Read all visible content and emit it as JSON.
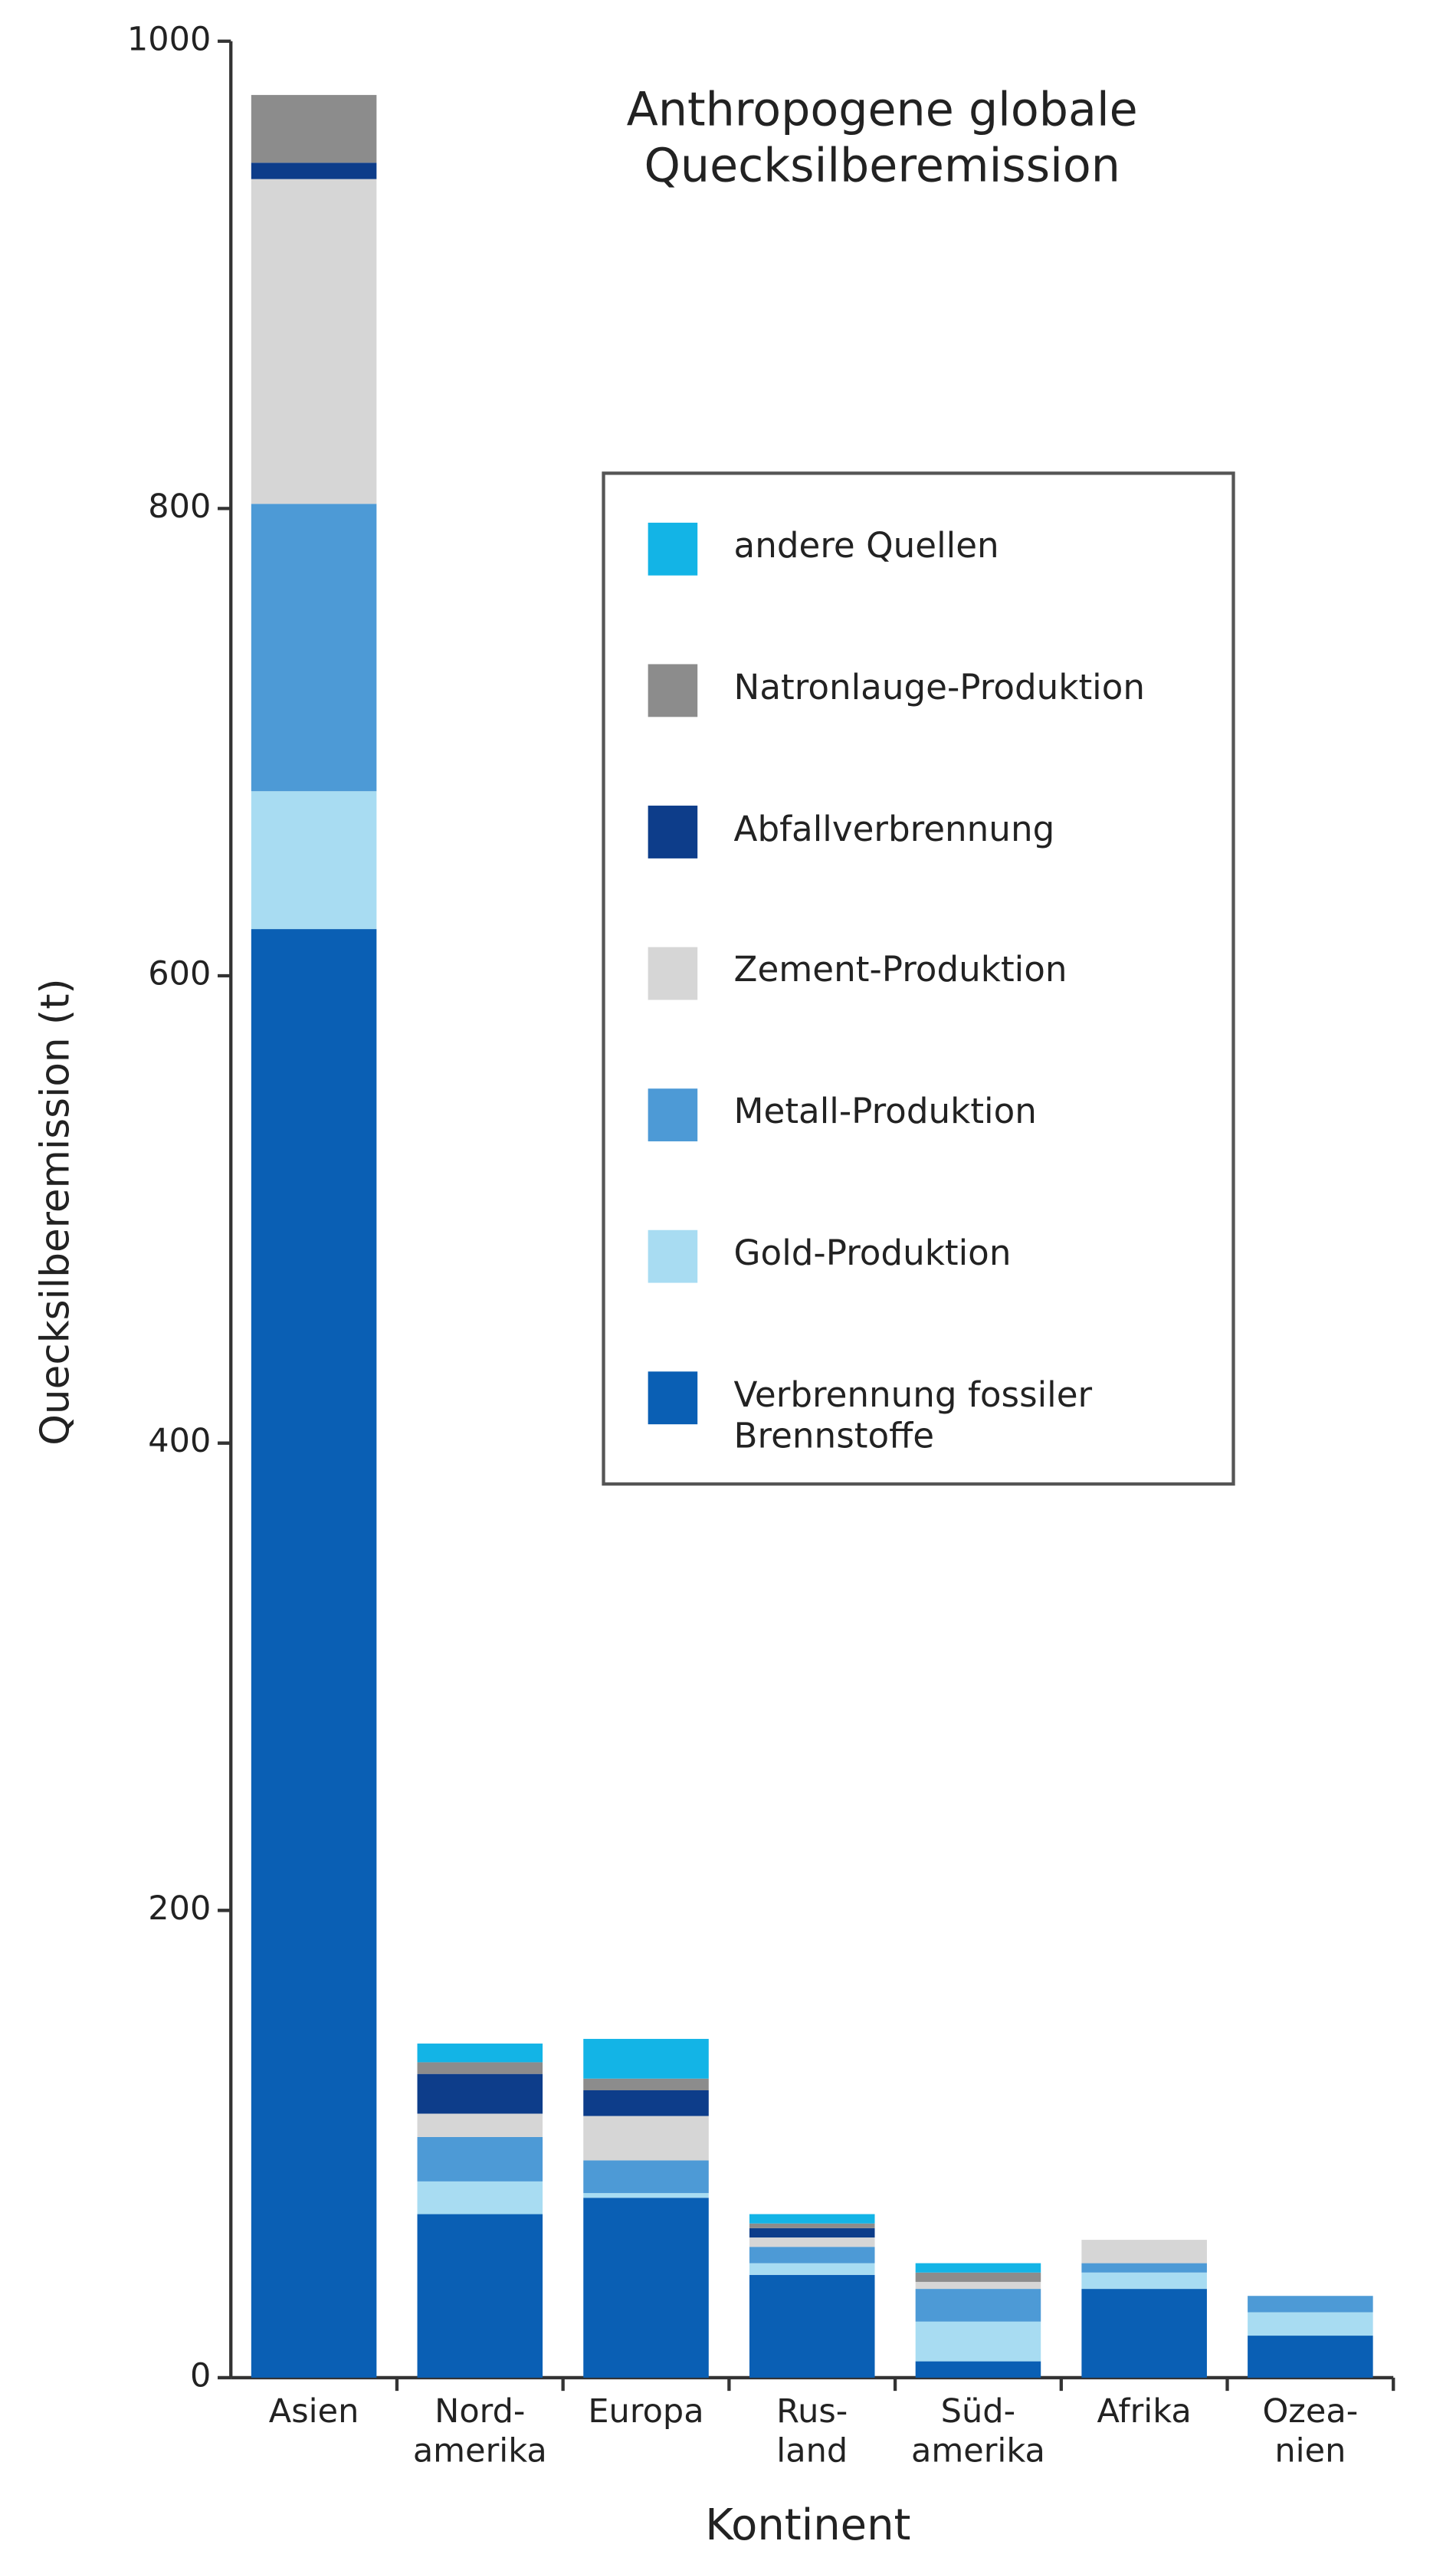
{
  "chart_data": {
    "type": "stacked_bar",
    "title": "Anthropogene globale\nQuecksilberemission",
    "x_label": "Kontinent",
    "y_label": "Quecksilberemission (t)",
    "categories": [
      "Asien",
      "Nord-\namerika",
      "Europa",
      "Rus-\nland",
      "Süd-\namerika",
      "Afrika",
      "Ozea-\nnien"
    ],
    "series": [
      {
        "name": "Verbrennung fossiler\nBrennstoffe",
        "color": "#0a5fb4",
        "values": [
          620,
          70,
          77,
          44,
          7,
          38,
          18
        ]
      },
      {
        "name": "Gold-Produktion",
        "color": "#a8dcf2",
        "values": [
          59,
          14,
          2,
          5,
          17,
          7,
          10
        ]
      },
      {
        "name": "Metall-Produktion",
        "color": "#4d9ad6",
        "values": [
          123,
          19,
          14,
          7,
          14,
          4,
          7
        ]
      },
      {
        "name": "Zement-Produktion",
        "color": "#d6d6d6",
        "values": [
          139,
          10,
          19,
          4,
          3,
          10,
          0
        ]
      },
      {
        "name": "Abfallverbrennung",
        "color": "#0d3d8a",
        "values": [
          7,
          17,
          11,
          4,
          0,
          0,
          0
        ]
      },
      {
        "name": "Natronlauge-Produktion",
        "color": "#8c8c8c",
        "values": [
          29,
          5,
          5,
          2,
          4,
          0,
          0
        ]
      },
      {
        "name": "andere Quellen",
        "color": "#13b4e6",
        "values": [
          0,
          8,
          17,
          4,
          4,
          0,
          0
        ]
      }
    ],
    "ylim": [
      0,
      1000
    ],
    "yticks": [
      0,
      200,
      400,
      600,
      800,
      1000
    ],
    "grid": false
  }
}
